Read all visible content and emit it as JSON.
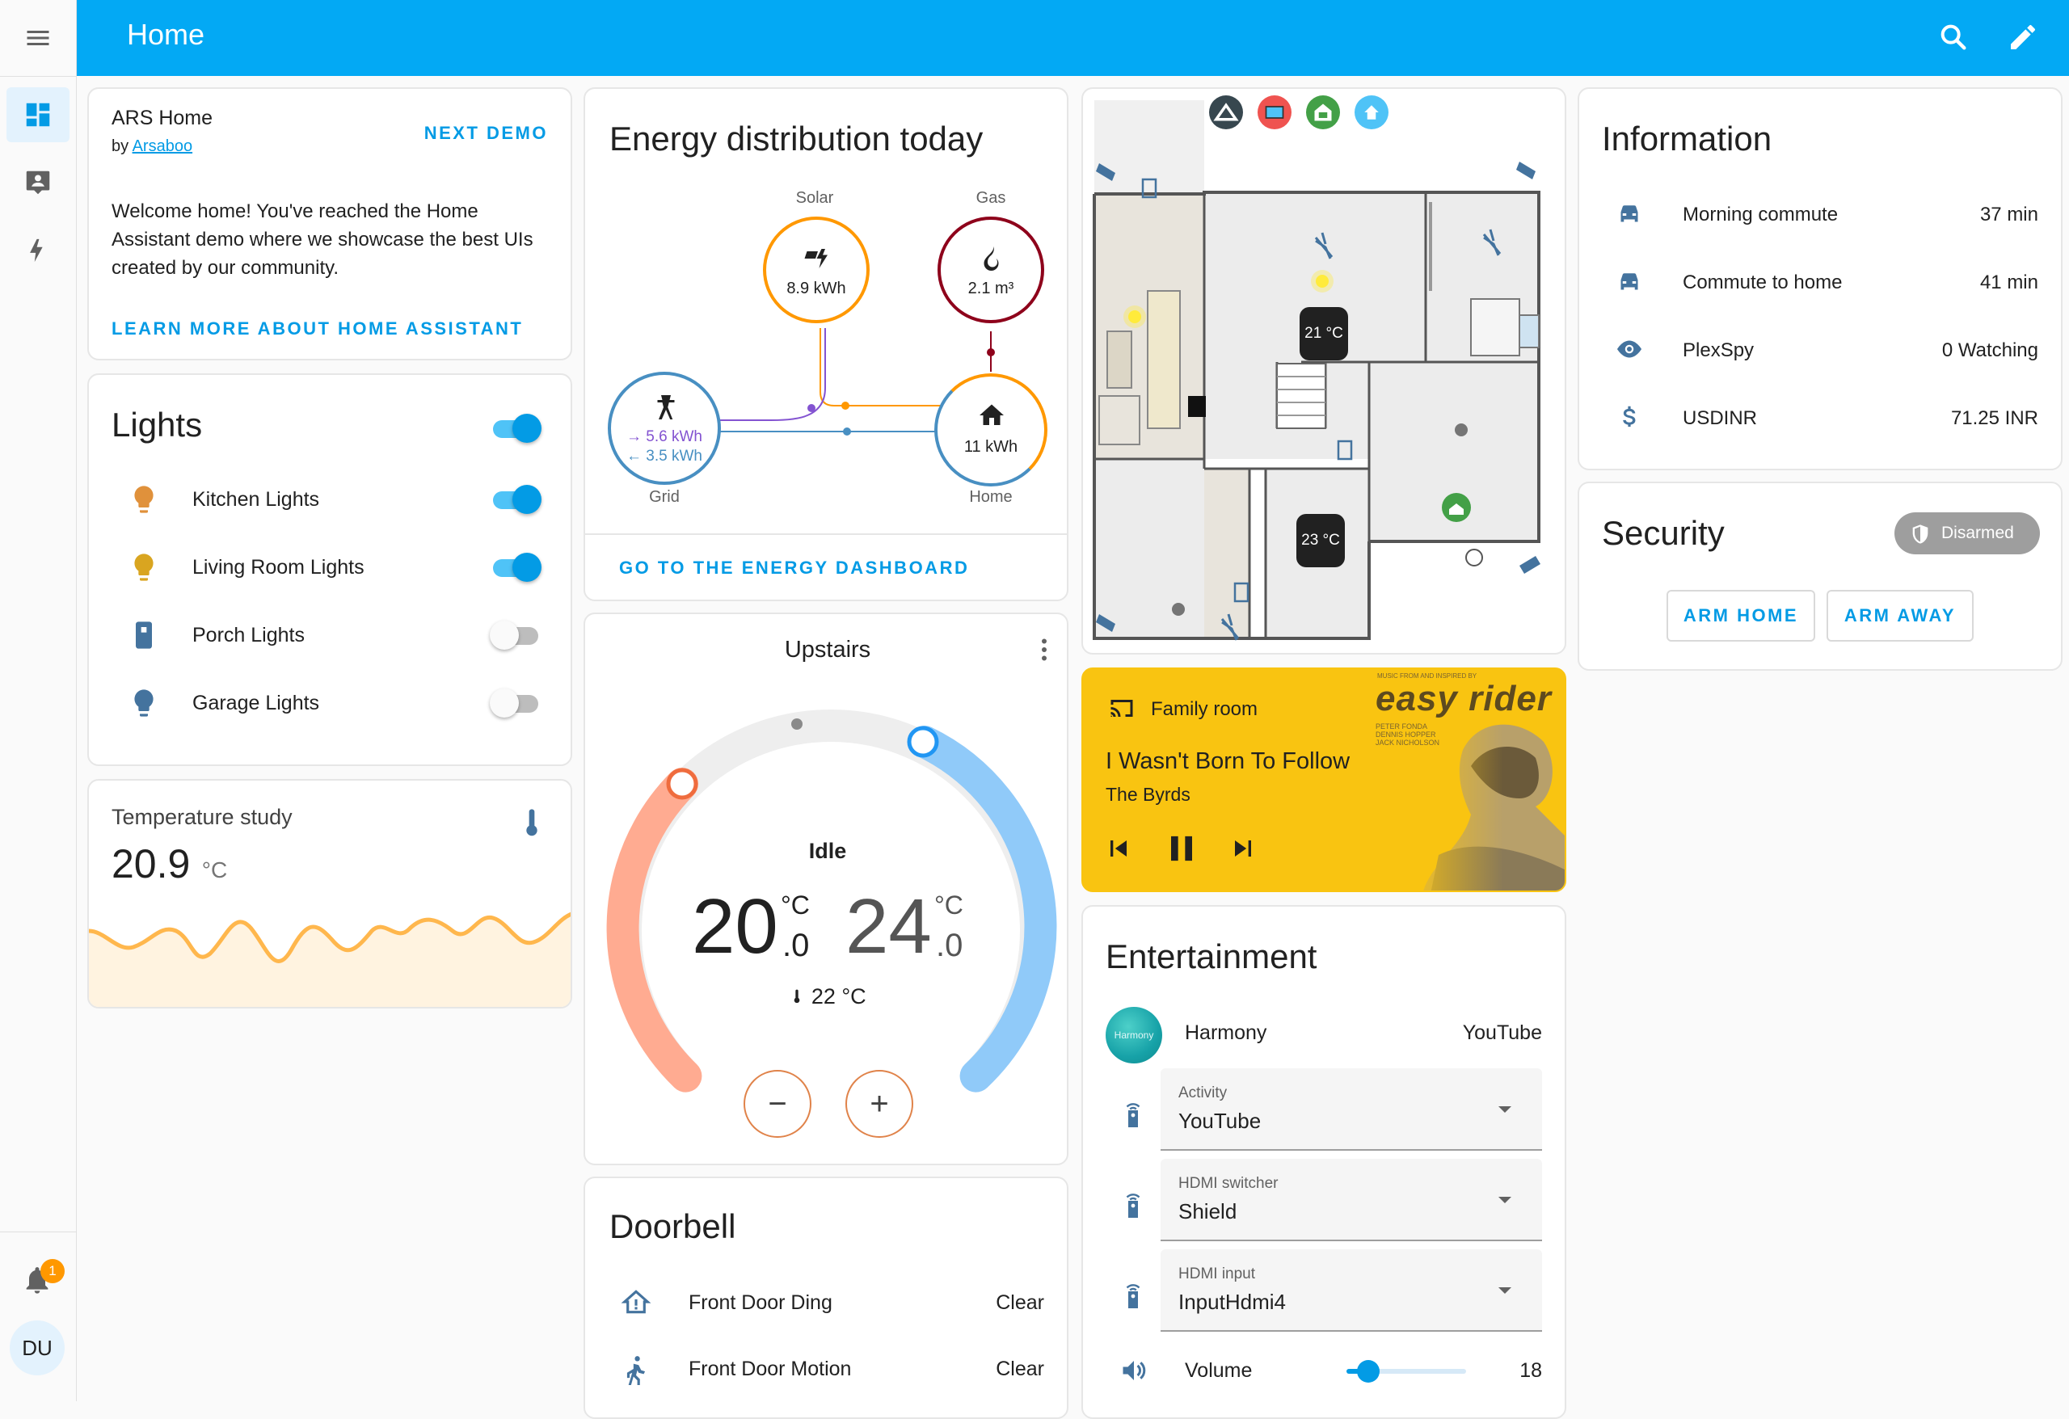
{
  "header": {
    "title": "Home",
    "icons": [
      "search-icon",
      "pencil-icon"
    ]
  },
  "sidebar": {
    "icons": [
      "menu-icon",
      "dashboard-icon",
      "account-box-icon",
      "lightning-icon"
    ],
    "notification_count": "1",
    "user_initials": "DU"
  },
  "ars_card": {
    "title": "ARS Home",
    "by_prefix": "by",
    "author": "Arsaboo",
    "next_demo": "NEXT DEMO",
    "welcome": "Welcome home! You've reached the Home Assistant demo where we showcase the best UIs created by our community.",
    "learn_more": "LEARN MORE ABOUT HOME ASSISTANT"
  },
  "lights": {
    "title": "Lights",
    "items": [
      {
        "label": "Kitchen Lights",
        "on": true,
        "icon": "bulb-icon",
        "color": "#e0913b"
      },
      {
        "label": "Living Room Lights",
        "on": true,
        "icon": "bulb-icon",
        "color": "#d9a520"
      },
      {
        "label": "Porch Lights",
        "on": false,
        "icon": "lamp-icon",
        "color": "#44739e"
      },
      {
        "label": "Garage Lights",
        "on": false,
        "icon": "bulb-icon",
        "color": "#44739e"
      }
    ]
  },
  "temperature": {
    "title": "Temperature study",
    "value": "20.9",
    "unit": "°C"
  },
  "energy": {
    "title": "Energy distribution today",
    "solar_label": "Solar",
    "solar_value": "8.9 kWh",
    "gas_label": "Gas",
    "gas_value": "2.1 m³",
    "grid_label": "Grid",
    "grid_in": "← 3.5 kWh",
    "grid_out": "→ 5.6 kWh",
    "home_label": "Home",
    "home_value": "11 kWh",
    "link": "GO TO THE ENERGY DASHBOARD",
    "colors": {
      "solar": "#ff9800",
      "gas": "#8e021b",
      "grid": "#488fc2",
      "grid_return": "#8353d1"
    }
  },
  "thermostat": {
    "title": "Upstairs",
    "state": "Idle",
    "low_int": "20",
    "low_dec": ".0",
    "high_int": "24",
    "high_dec": ".0",
    "unit": "°C",
    "current": "22 °C",
    "minus": "−",
    "plus": "+"
  },
  "doorbell": {
    "title": "Doorbell",
    "items": [
      {
        "label": "Front Door Ding",
        "state": "Clear",
        "icon": "home-alert-icon"
      },
      {
        "label": "Front Door Motion",
        "state": "Clear",
        "icon": "motion-icon"
      }
    ]
  },
  "floorplan": {
    "top_icons": [
      "mountain-icon",
      "tv-icon",
      "garage-lock-icon",
      "home-icon"
    ],
    "thermostat_1": "21 °C",
    "thermostat_2": "23 °C"
  },
  "media": {
    "source": "Family room",
    "title": "I Wasn't Born To Follow",
    "artist": "The Byrds",
    "album_art_text": "easy rider",
    "album_art_small": [
      "MUSIC FROM AND INSPIRED BY",
      "PETER FONDA",
      "DENNIS HOPPER",
      "JACK NICHOLSON"
    ]
  },
  "entertainment": {
    "title": "Entertainment",
    "harmony_avatar": "Harmony",
    "harmony_label": "Harmony",
    "harmony_state": "YouTube",
    "selects": [
      {
        "label": "Activity",
        "value": "YouTube"
      },
      {
        "label": "HDMI switcher",
        "value": "Shield"
      },
      {
        "label": "HDMI input",
        "value": "InputHdmi4"
      }
    ],
    "volume_label": "Volume",
    "volume_value": "18",
    "volume_fraction": 0.18
  },
  "information": {
    "title": "Information",
    "items": [
      {
        "label": "Morning commute",
        "value": "37 min",
        "icon": "car-icon"
      },
      {
        "label": "Commute to home",
        "value": "41 min",
        "icon": "car-icon"
      },
      {
        "label": "PlexSpy",
        "value": "0 Watching",
        "icon": "eye-icon"
      },
      {
        "label": "USDINR",
        "value": "71.25 INR",
        "icon": "dollar-icon"
      }
    ]
  },
  "security": {
    "title": "Security",
    "state": "Disarmed",
    "arm_home": "ARM HOME",
    "arm_away": "ARM AWAY"
  }
}
